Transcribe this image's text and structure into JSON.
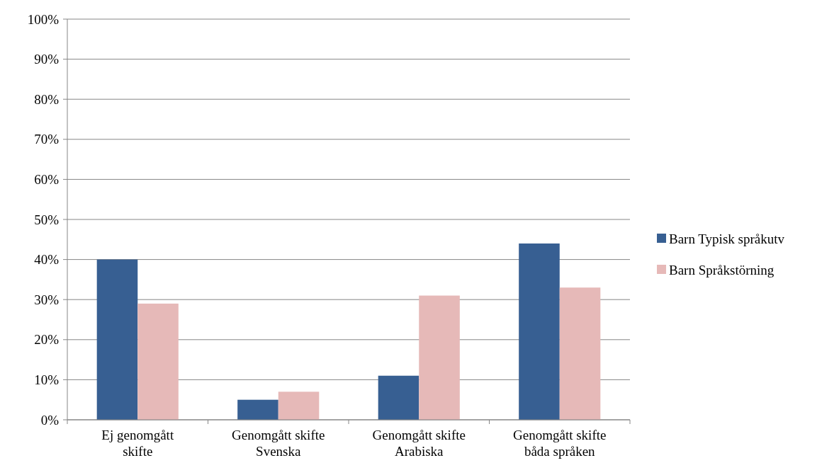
{
  "chart_data": {
    "type": "bar",
    "categories": [
      "Ej genomgått skifte",
      "Genomgått skifte Svenska",
      "Genomgått skifte Arabiska",
      "Genomgått skifte båda språken"
    ],
    "series": [
      {
        "name": "Barn Typisk språkutv",
        "color": "#375f92",
        "values": [
          40,
          5,
          11,
          44
        ]
      },
      {
        "name": "Barn Språkstörning",
        "color": "#e6b9b8",
        "values": [
          29,
          7,
          31,
          33
        ]
      }
    ],
    "ylim": [
      0,
      100
    ],
    "yticks": [
      {
        "value": 0,
        "label": "0%"
      },
      {
        "value": 10,
        "label": "10%"
      },
      {
        "value": 20,
        "label": "20%"
      },
      {
        "value": 30,
        "label": "30%"
      },
      {
        "value": 40,
        "label": "40%"
      },
      {
        "value": 50,
        "label": "50%"
      },
      {
        "value": 60,
        "label": "60%"
      },
      {
        "value": 70,
        "label": "70%"
      },
      {
        "value": 80,
        "label": "80%"
      },
      {
        "value": 90,
        "label": "90%"
      },
      {
        "value": 100,
        "label": "100%"
      }
    ],
    "grid": "y",
    "legend": "right"
  }
}
